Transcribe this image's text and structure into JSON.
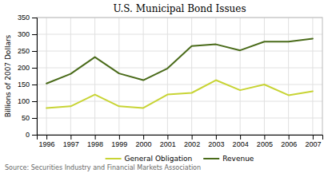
{
  "chart_data": {
    "type": "line",
    "title": "U.S. Municipal Bond Issues",
    "y_label": "Billions of 2007 Dollars",
    "annotations": [
      "Source: Securities Industry and Financial Markets Association"
    ],
    "x": [
      1996,
      1997,
      1998,
      1999,
      2000,
      2001,
      2002,
      2003,
      2004,
      2005,
      2006,
      2007
    ],
    "series": [
      {
        "name": "General Obligation",
        "color": "#c8d435",
        "values": [
          80,
          85,
          120,
          85,
          80,
          120,
          125,
          163,
          133,
          150,
          118,
          130
        ]
      },
      {
        "name": "Revenue",
        "color": "#4a6b1a",
        "values": [
          153,
          182,
          232,
          183,
          163,
          198,
          265,
          270,
          252,
          278,
          278,
          287
        ]
      }
    ],
    "xlim": [
      1995.6,
      2007.4
    ],
    "xticks": [
      1996,
      1997,
      1998,
      1999,
      2000,
      2001,
      2002,
      2003,
      2004,
      2005,
      2006,
      2007
    ],
    "ylim": [
      0,
      350
    ],
    "yticks": [
      0,
      50,
      100,
      150,
      200,
      250,
      300,
      350
    ],
    "grid": true,
    "legend": "bottom"
  }
}
